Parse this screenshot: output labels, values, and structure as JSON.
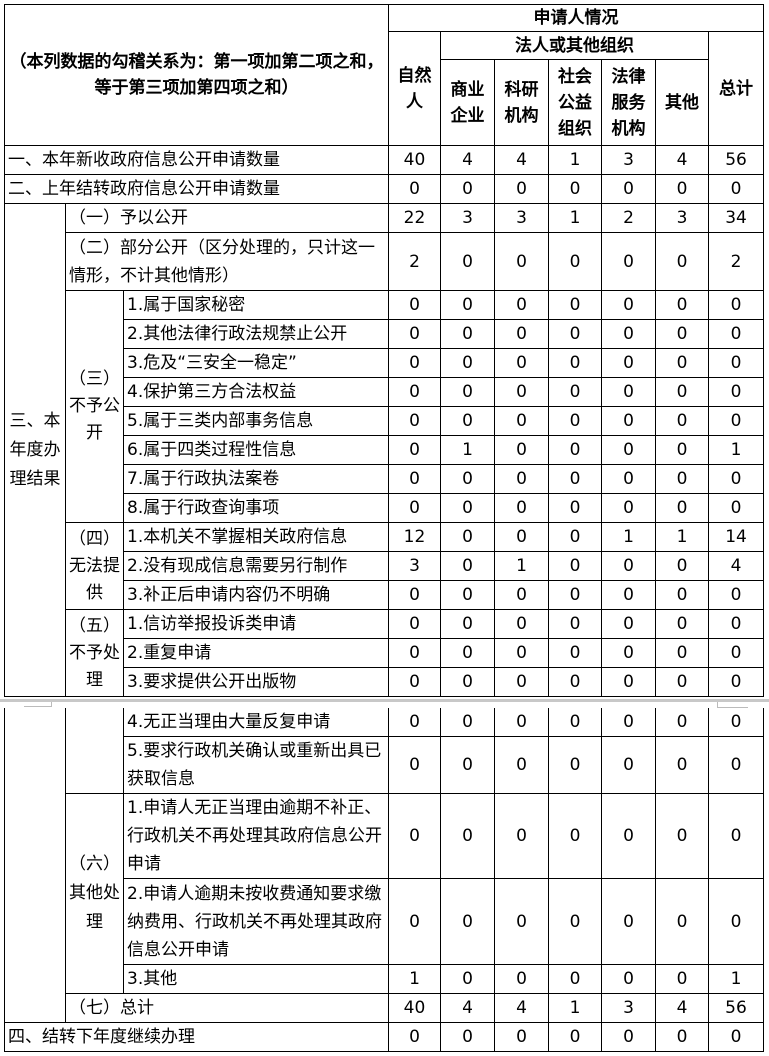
{
  "header": {
    "note": "（本列数据的勾稽关系为：第一项加第二项之和，等于第三项加第四项之和）",
    "applicant_situation": "申请人情况",
    "legal_persons": "法人或其他组织",
    "columns": [
      "自然人",
      "商业企业",
      "科研机构",
      "社会公益组织",
      "法律服务机构",
      "其他",
      "总计"
    ]
  },
  "groups": {
    "section3": "三、本年度办理结果",
    "g3": "（三）不予公开",
    "g4": "（四）无法提供",
    "g5": "（五）不予处理",
    "g6": "（六）其他处理"
  },
  "rows": [
    {
      "label": "一、本年新收政府信息公开申请数量",
      "values": [
        40,
        4,
        4,
        1,
        3,
        4,
        56
      ]
    },
    {
      "label": "二、上年结转政府信息公开申请数量",
      "values": [
        0,
        0,
        0,
        0,
        0,
        0,
        0
      ]
    },
    {
      "label": "（一）予以公开",
      "values": [
        22,
        3,
        3,
        1,
        2,
        3,
        34
      ]
    },
    {
      "label": "（二）部分公开（区分处理的，只计这一情形，不计其他情形）",
      "values": [
        2,
        0,
        0,
        0,
        0,
        0,
        2
      ]
    },
    {
      "label": "1.属于国家秘密",
      "values": [
        0,
        0,
        0,
        0,
        0,
        0,
        0
      ]
    },
    {
      "label": "2.其他法律行政法规禁止公开",
      "values": [
        0,
        0,
        0,
        0,
        0,
        0,
        0
      ]
    },
    {
      "label": "3.危及“三安全一稳定”",
      "values": [
        0,
        0,
        0,
        0,
        0,
        0,
        0
      ]
    },
    {
      "label": "4.保护第三方合法权益",
      "values": [
        0,
        0,
        0,
        0,
        0,
        0,
        0
      ]
    },
    {
      "label": "5.属于三类内部事务信息",
      "values": [
        0,
        0,
        0,
        0,
        0,
        0,
        0
      ]
    },
    {
      "label": "6.属于四类过程性信息",
      "values": [
        0,
        1,
        0,
        0,
        0,
        0,
        1
      ]
    },
    {
      "label": "7.属于行政执法案卷",
      "values": [
        0,
        0,
        0,
        0,
        0,
        0,
        0
      ]
    },
    {
      "label": "8.属于行政查询事项",
      "values": [
        0,
        0,
        0,
        0,
        0,
        0,
        0
      ]
    },
    {
      "label": "1.本机关不掌握相关政府信息",
      "values": [
        12,
        0,
        0,
        0,
        1,
        1,
        14
      ]
    },
    {
      "label": "2.没有现成信息需要另行制作",
      "values": [
        3,
        0,
        1,
        0,
        0,
        0,
        4
      ]
    },
    {
      "label": "3.补正后申请内容仍不明确",
      "values": [
        0,
        0,
        0,
        0,
        0,
        0,
        0
      ]
    },
    {
      "label": "1.信访举报投诉类申请",
      "values": [
        0,
        0,
        0,
        0,
        0,
        0,
        0
      ]
    },
    {
      "label": "2.重复申请",
      "values": [
        0,
        0,
        0,
        0,
        0,
        0,
        0
      ]
    },
    {
      "label": "3.要求提供公开出版物",
      "values": [
        0,
        0,
        0,
        0,
        0,
        0,
        0
      ]
    },
    {
      "label": "4.无正当理由大量反复申请",
      "values": [
        0,
        0,
        0,
        0,
        0,
        0,
        0
      ]
    },
    {
      "label": "5.要求行政机关确认或重新出具已获取信息",
      "values": [
        0,
        0,
        0,
        0,
        0,
        0,
        0
      ]
    },
    {
      "label": "1.申请人无正当理由逾期不补正、行政机关不再处理其政府信息公开申请",
      "values": [
        0,
        0,
        0,
        0,
        0,
        0,
        0
      ]
    },
    {
      "label": "2.申请人逾期未按收费通知要求缴纳费用、行政机关不再处理其政府信息公开申请",
      "values": [
        0,
        0,
        0,
        0,
        0,
        0,
        0
      ]
    },
    {
      "label": "3.其他",
      "values": [
        1,
        0,
        0,
        0,
        0,
        0,
        1
      ]
    },
    {
      "label": "（七）总计",
      "values": [
        40,
        4,
        4,
        1,
        3,
        4,
        56
      ]
    },
    {
      "label": "四、结转下年度继续办理",
      "values": [
        0,
        0,
        0,
        0,
        0,
        0,
        0
      ]
    }
  ]
}
